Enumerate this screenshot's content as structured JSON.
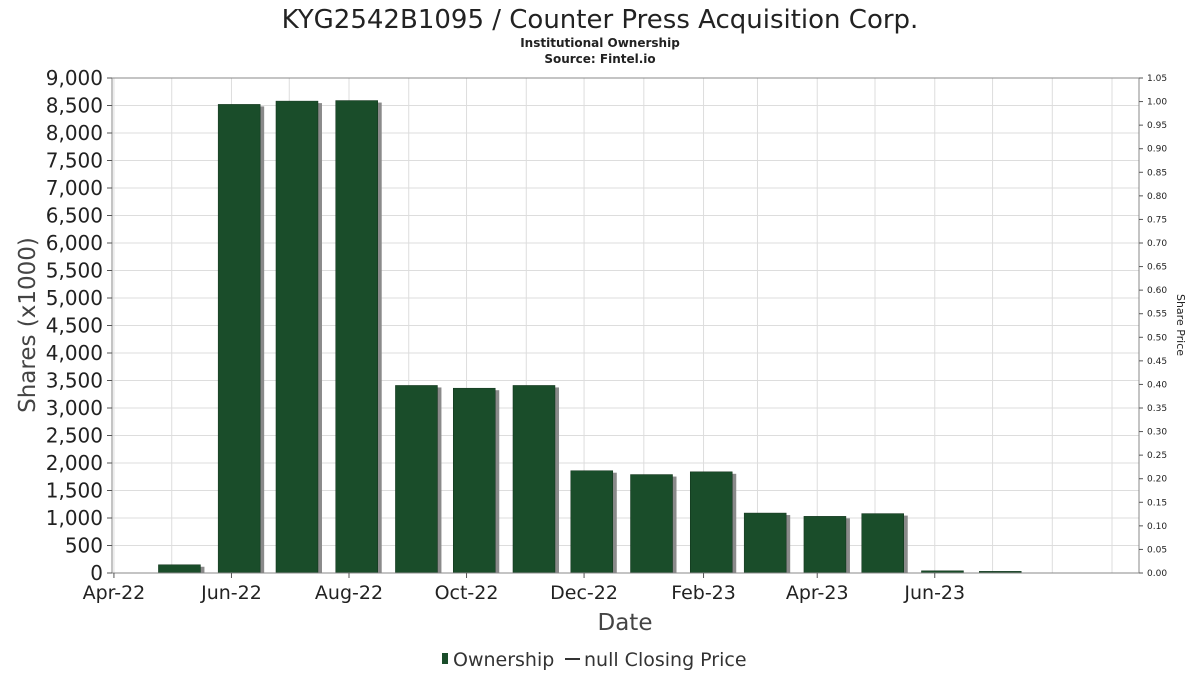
{
  "chart_data": {
    "type": "bar",
    "title": "KYG2542B1095 / Counter Press Acquisition Corp.",
    "subtitle_lines": [
      "Institutional Ownership",
      "Source: Fintel.io"
    ],
    "xlabel": "Date",
    "ylabel": "Shares (x1000)",
    "y2label": "Share Price",
    "ylim": [
      0,
      9000
    ],
    "y_ticks": [
      "0",
      "500",
      "1,000",
      "1,500",
      "2,000",
      "2,500",
      "3,000",
      "3,500",
      "4,000",
      "4,500",
      "5,000",
      "5,500",
      "6,000",
      "6,500",
      "7,000",
      "7,500",
      "8,000",
      "8,500",
      "9,000"
    ],
    "y2lim": [
      0,
      1.05
    ],
    "y2_ticks": [
      "0.00",
      "0.05",
      "0.10",
      "0.15",
      "0.20",
      "0.25",
      "0.30",
      "0.35",
      "0.40",
      "0.45",
      "0.50",
      "0.55",
      "0.60",
      "0.65",
      "0.70",
      "0.75",
      "0.80",
      "0.85",
      "0.90",
      "0.95",
      "1.00",
      "1.05"
    ],
    "x_ticks": [
      "Apr-22",
      "Jun-22",
      "Aug-22",
      "Oct-22",
      "Dec-22",
      "Feb-23",
      "Apr-23",
      "Jun-23"
    ],
    "x_range": [
      "2022-03-31",
      "2023-09-15"
    ],
    "grid": true,
    "legend_position": "bottom-center",
    "legend": [
      "Ownership",
      "null Closing Price"
    ],
    "series": [
      {
        "name": "Ownership",
        "color": "#1a4d2a",
        "x": [
          "2022-05-05",
          "2022-06-05",
          "2022-07-05",
          "2022-08-05",
          "2022-09-05",
          "2022-10-05",
          "2022-11-05",
          "2022-12-05",
          "2023-01-05",
          "2023-02-05",
          "2023-03-05",
          "2023-04-05",
          "2023-05-05",
          "2023-06-05",
          "2023-07-05"
        ],
        "values": [
          150,
          8520,
          8580,
          8590,
          3410,
          3360,
          3410,
          1860,
          1790,
          1840,
          1090,
          1030,
          1080,
          40,
          30
        ]
      },
      {
        "name": "null Closing Price",
        "color": "#333333",
        "x": [],
        "values": []
      }
    ]
  }
}
